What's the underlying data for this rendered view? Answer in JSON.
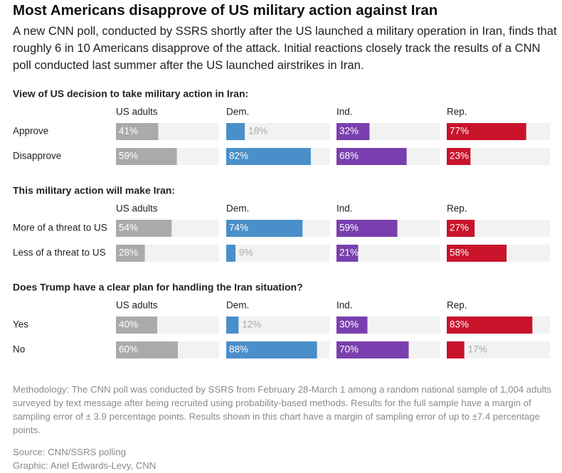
{
  "header": {
    "title": "Most Americans disapprove of US military action against Iran",
    "subtitle": "A new CNN poll, conducted by SSRS shortly after the US launched a military operation in Iran, finds that roughly 6 in 10 Americans disapprove of the attack. Initial reactions closely track the results of a CNN poll conducted last summer after the US launched airstrikes in Iran."
  },
  "chart_data": [
    {
      "type": "bar",
      "orientation": "horizontal",
      "title": "View of US decision to take military action in Iran:",
      "categories": [
        "Approve",
        "Disapprove"
      ],
      "xlim": [
        0,
        100
      ],
      "series": [
        {
          "name": "US adults",
          "color": "#aaaaaa",
          "values": [
            41,
            59
          ],
          "value_labels": [
            "41%",
            "59%"
          ]
        },
        {
          "name": "Dem.",
          "color": "#4a8fc9",
          "values": [
            18,
            82
          ],
          "value_labels": [
            "18%",
            "82%"
          ]
        },
        {
          "name": "Ind.",
          "color": "#7a3fae",
          "values": [
            32,
            68
          ],
          "value_labels": [
            "32%",
            "68%"
          ]
        },
        {
          "name": "Rep.",
          "color": "#c8132b",
          "values": [
            77,
            23
          ],
          "value_labels": [
            "77%",
            "23%"
          ]
        }
      ]
    },
    {
      "type": "bar",
      "orientation": "horizontal",
      "title": "This military action will make Iran:",
      "categories": [
        "More of a threat to US",
        "Less of a threat to US"
      ],
      "xlim": [
        0,
        100
      ],
      "series": [
        {
          "name": "US adults",
          "color": "#aaaaaa",
          "values": [
            54,
            28
          ],
          "value_labels": [
            "54%",
            "28%"
          ]
        },
        {
          "name": "Dem.",
          "color": "#4a8fc9",
          "values": [
            74,
            9
          ],
          "value_labels": [
            "74%",
            "9%"
          ]
        },
        {
          "name": "Ind.",
          "color": "#7a3fae",
          "values": [
            59,
            21
          ],
          "value_labels": [
            "59%",
            "21%"
          ]
        },
        {
          "name": "Rep.",
          "color": "#c8132b",
          "values": [
            27,
            58
          ],
          "value_labels": [
            "27%",
            "58%"
          ]
        }
      ]
    },
    {
      "type": "bar",
      "orientation": "horizontal",
      "title": "Does Trump have a clear plan for handling the Iran situation?",
      "categories": [
        "Yes",
        "No"
      ],
      "xlim": [
        0,
        100
      ],
      "series": [
        {
          "name": "US adults",
          "color": "#aaaaaa",
          "values": [
            40,
            60
          ],
          "value_labels": [
            "40%",
            "60%"
          ]
        },
        {
          "name": "Dem.",
          "color": "#4a8fc9",
          "values": [
            12,
            88
          ],
          "value_labels": [
            "12%",
            "88%"
          ]
        },
        {
          "name": "Ind.",
          "color": "#7a3fae",
          "values": [
            30,
            70
          ],
          "value_labels": [
            "30%",
            "70%"
          ]
        },
        {
          "name": "Rep.",
          "color": "#c8132b",
          "values": [
            83,
            17
          ],
          "value_labels": [
            "83%",
            "17%"
          ]
        }
      ]
    }
  ],
  "footer": {
    "methodology": "Methodology: The CNN poll was conducted by SSRS from February 28-March 1 among a random national sample of 1,004 adults surveyed by text message after being recruited using probability-based methods. Results for the full sample have a margin of sampling error of ± 3.9 percentage points. Results shown in this chart have a margin of sampling error of up to ±7.4 percentage points.",
    "source": "Source: CNN/SSRS polling",
    "credit": "Graphic: Ariel Edwards-Levy, CNN"
  }
}
